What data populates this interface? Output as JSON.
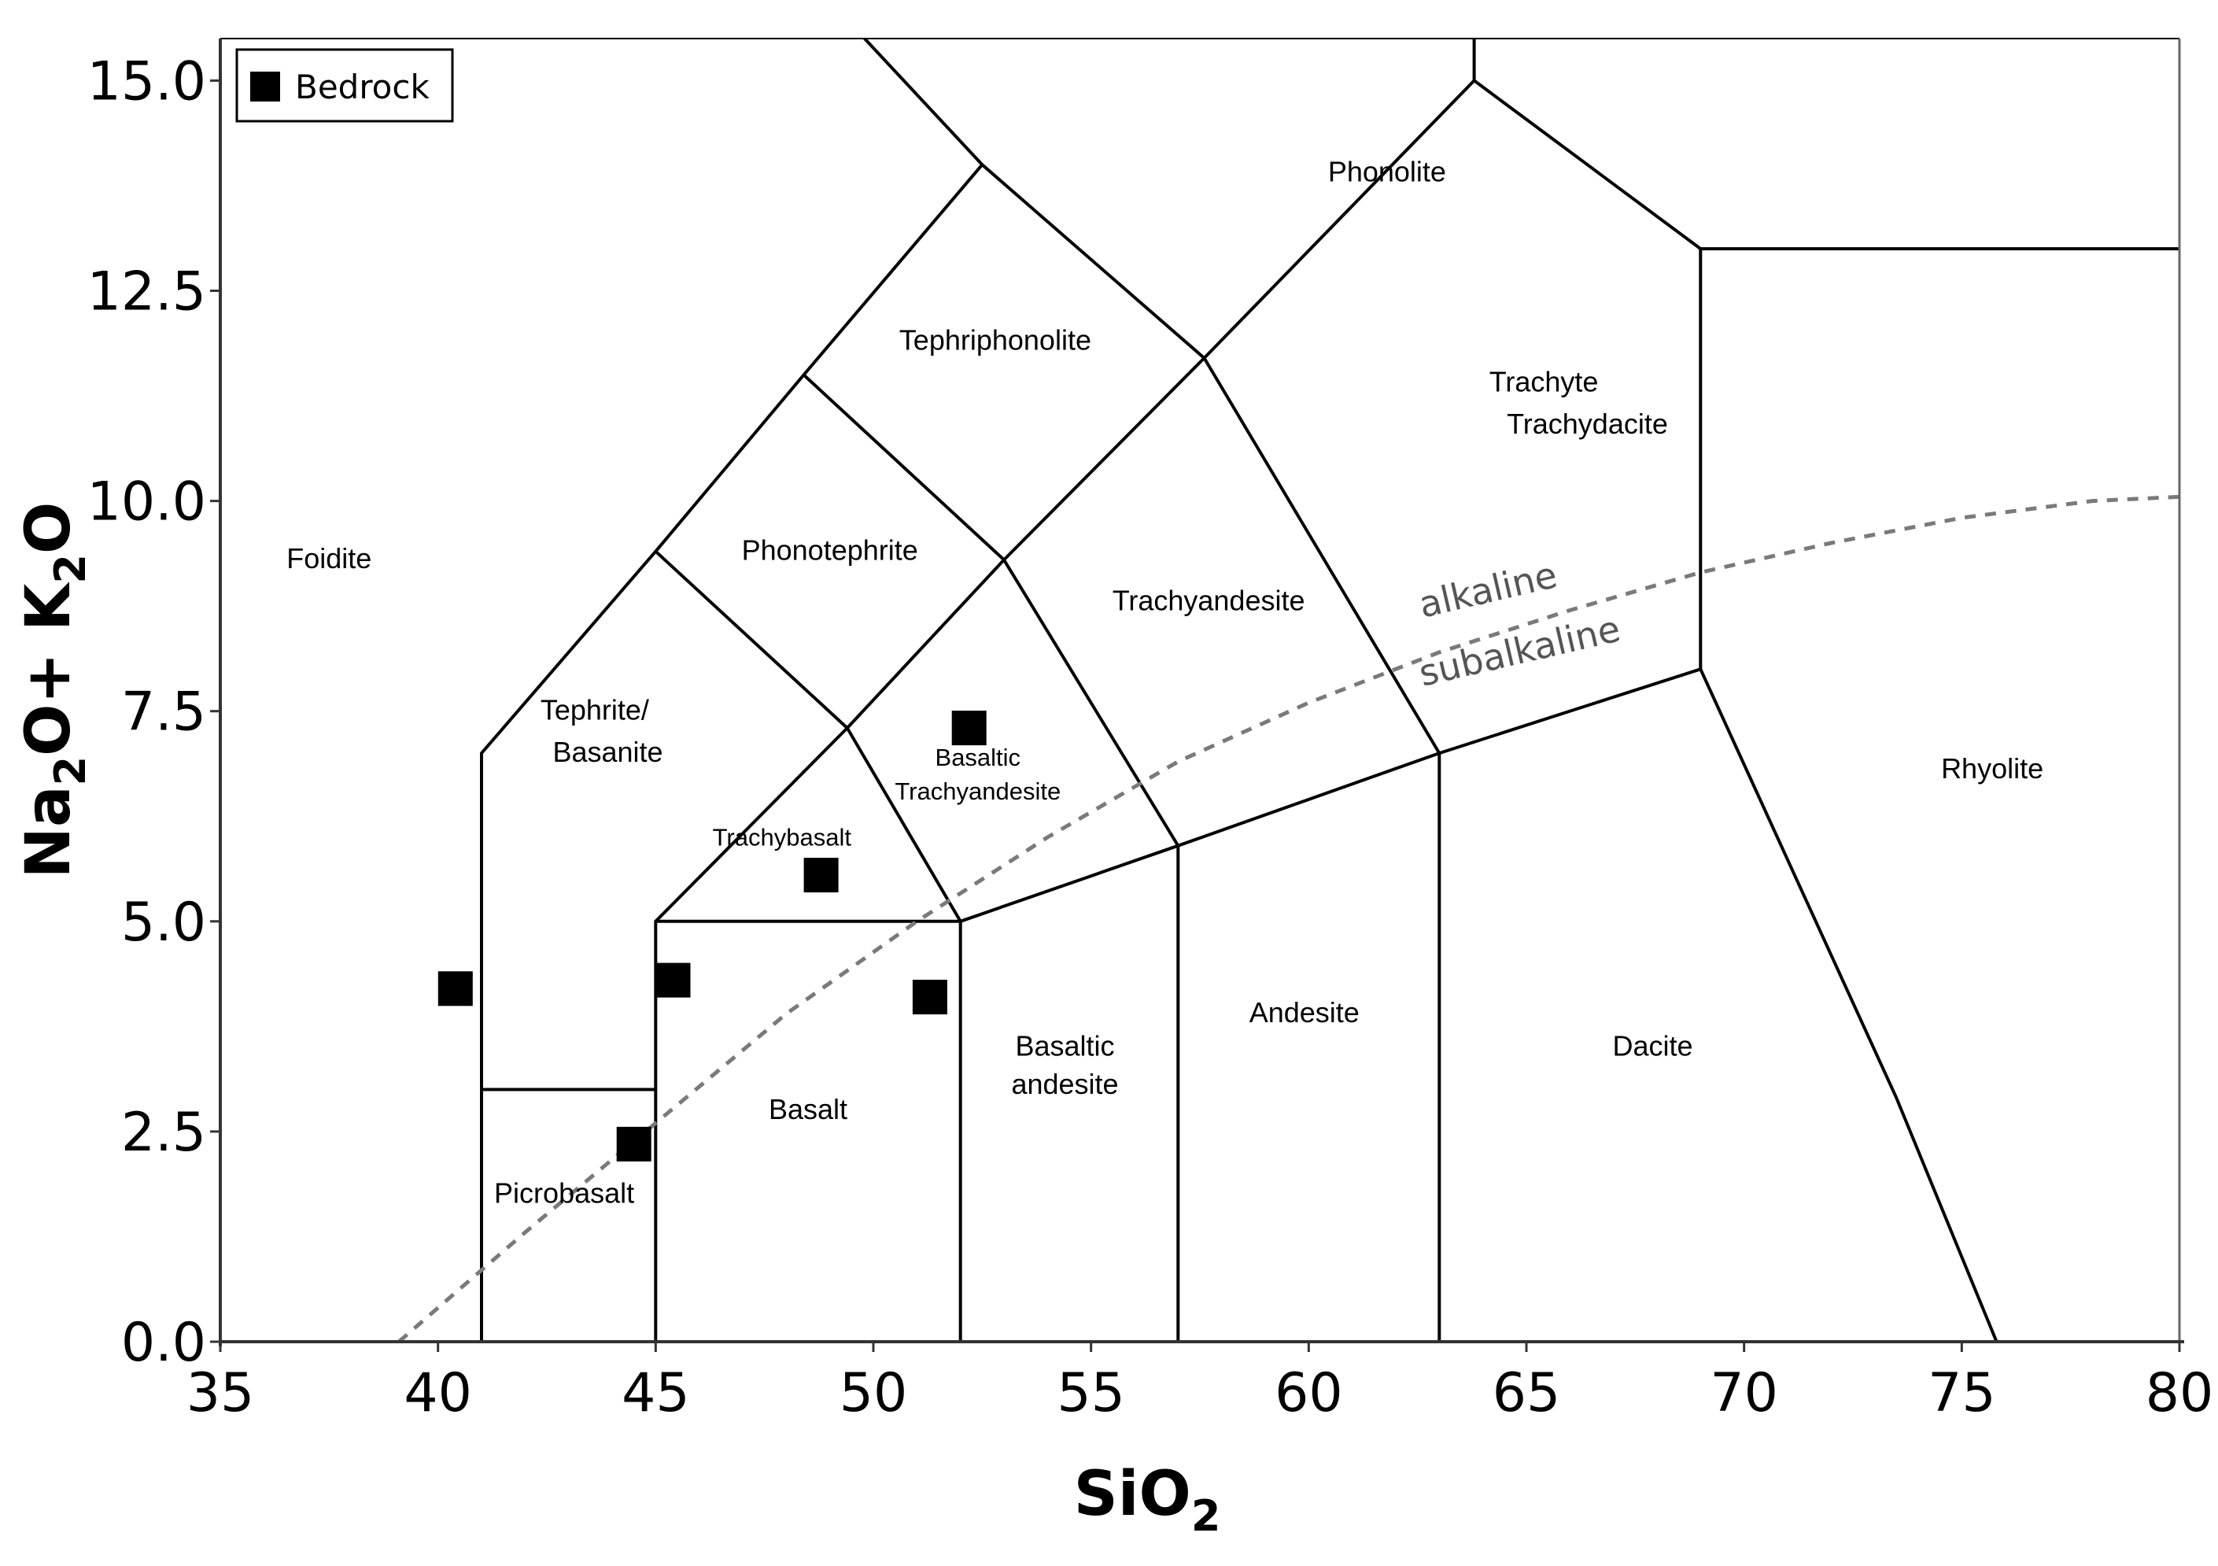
{
  "chart_data": {
    "type": "scatter",
    "title": "",
    "xlabel": "SiO",
    "xlabel_sub": "2",
    "ylabel_parts": [
      "Na",
      "2",
      "O+ K",
      "2",
      "O"
    ],
    "xlim": [
      35,
      80
    ],
    "ylim": [
      0,
      15.5
    ],
    "xticks": [
      35,
      40,
      45,
      50,
      55,
      60,
      65,
      70,
      75,
      80
    ],
    "yticks": [
      0,
      2.5,
      5,
      7.5,
      10,
      12.5,
      15
    ],
    "xtick_labels": [
      "35",
      "40",
      "45",
      "50",
      "55",
      "60",
      "65",
      "70",
      "75",
      "80"
    ],
    "ytick_labels": [
      "0.0",
      "2.5",
      "5.0",
      "7.5",
      "10.0",
      "12.5",
      "15.0"
    ],
    "grid": false,
    "legend": {
      "placement": "top-left",
      "entries": [
        "Bedrock"
      ]
    },
    "series": [
      {
        "name": "Bedrock",
        "marker": "square",
        "color": "#000000",
        "x": [
          40.4,
          45.4,
          44.5,
          48.8,
          51.3,
          52.2
        ],
        "y": [
          4.2,
          4.3,
          2.35,
          5.55,
          4.1,
          7.3
        ]
      }
    ],
    "boundaries": [
      [
        [
          41,
          0
        ],
        [
          41,
          7
        ],
        [
          45,
          9.4
        ],
        [
          48.4,
          11.5
        ],
        [
          52.5,
          14
        ],
        [
          48.9,
          16
        ]
      ],
      [
        [
          45,
          0
        ],
        [
          45,
          5
        ],
        [
          52,
          5
        ],
        [
          57,
          5.9
        ],
        [
          63,
          7
        ],
        [
          69,
          8
        ],
        [
          69,
          13
        ],
        [
          80,
          13
        ]
      ],
      [
        [
          41,
          3
        ],
        [
          45,
          3
        ]
      ],
      [
        [
          52,
          0
        ],
        [
          52,
          5
        ]
      ],
      [
        [
          57,
          0
        ],
        [
          57,
          5.9
        ]
      ],
      [
        [
          63,
          0
        ],
        [
          63,
          7
        ]
      ],
      [
        [
          45,
          5
        ],
        [
          49.4,
          7.3
        ],
        [
          52,
          5
        ]
      ],
      [
        [
          45,
          9.4
        ],
        [
          49.4,
          7.3
        ],
        [
          53,
          9.3
        ],
        [
          57.6,
          11.7
        ],
        [
          63,
          7
        ]
      ],
      [
        [
          48.4,
          11.5
        ],
        [
          53,
          9.3
        ]
      ],
      [
        [
          52.5,
          14
        ],
        [
          57.6,
          11.7
        ],
        [
          63.8,
          15
        ],
        [
          63.8,
          16
        ]
      ],
      [
        [
          53,
          9.3
        ],
        [
          57,
          5.9
        ]
      ],
      [
        [
          63.8,
          15
        ],
        [
          69,
          13
        ]
      ],
      [
        [
          69,
          8
        ],
        [
          73.5,
          2.9
        ],
        [
          75.8,
          0
        ]
      ]
    ],
    "alkaline_divider": {
      "x": [
        39.1,
        42,
        45,
        48,
        51,
        54,
        57,
        60,
        63,
        66,
        69,
        72,
        75,
        78,
        80
      ],
      "y": [
        0,
        1.3,
        2.6,
        3.9,
        5.0,
        6.0,
        6.9,
        7.6,
        8.2,
        8.7,
        9.15,
        9.5,
        9.8,
        10.0,
        10.05
      ]
    },
    "series_labels": [
      "alkaline",
      "subalkaline"
    ],
    "fields": [
      {
        "label": "Foidite",
        "x": 37.5,
        "y": 9.2
      },
      {
        "label": "Phonolite",
        "x": 61.8,
        "y": 13.8
      },
      {
        "label": "Tephriphonolite",
        "x": 52.8,
        "y": 11.8
      },
      {
        "label": "Phonotephrite",
        "x": 49,
        "y": 9.3
      },
      {
        "label": "Trachyandesite",
        "x": 57.7,
        "y": 8.7
      },
      {
        "label": "Trachyte",
        "x": 65.4,
        "y": 11.3
      },
      {
        "label": "Trachydacite",
        "x": 66.4,
        "y": 10.8
      },
      {
        "label": "Tephrite/",
        "x": 43.6,
        "y": 7.4
      },
      {
        "label": "Basanite",
        "x": 43.9,
        "y": 6.9
      },
      {
        "label": "Basaltic",
        "x": 52.4,
        "y": 6.85,
        "small": true
      },
      {
        "label": "Trachyandesite",
        "x": 52.4,
        "y": 6.45,
        "small": true
      },
      {
        "label": "Trachybasalt",
        "x": 47.9,
        "y": 5.9,
        "small": true
      },
      {
        "label": "Rhyolite",
        "x": 75.7,
        "y": 6.7
      },
      {
        "label": "Basaltic",
        "x": 54.4,
        "y": 3.4
      },
      {
        "label": "andesite",
        "x": 54.4,
        "y": 2.95
      },
      {
        "label": "Andesite",
        "x": 59.9,
        "y": 3.8
      },
      {
        "label": "Dacite",
        "x": 67.9,
        "y": 3.4
      },
      {
        "label": "Basalt",
        "x": 48.5,
        "y": 2.65
      },
      {
        "label": "Picrobasalt",
        "x": 42.9,
        "y": 1.65
      }
    ]
  }
}
